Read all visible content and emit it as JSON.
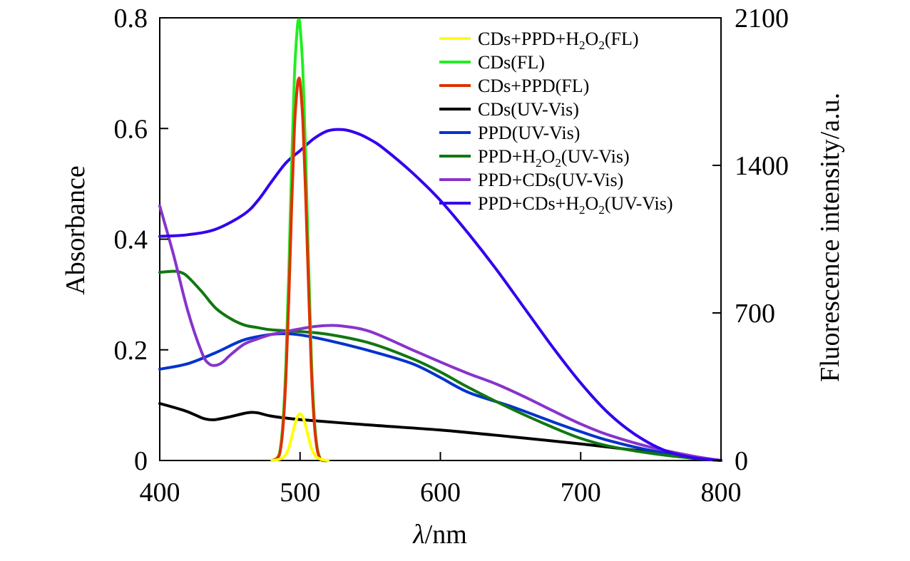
{
  "chart_data": {
    "type": "line",
    "xlabel_italic": "λ",
    "xlabel_rest": "/nm",
    "ylabel": "Absorbance",
    "y2label": "Fluorescence intensity/a.u.",
    "xlim": [
      400,
      800
    ],
    "ylim": [
      0,
      0.8
    ],
    "y2lim": [
      0,
      2100
    ],
    "xticks": [
      400,
      500,
      600,
      700,
      800
    ],
    "yticks": [
      0,
      0.2,
      0.4,
      0.6,
      0.8
    ],
    "ytick_labels": [
      "0",
      "0.2",
      "0.4",
      "0.6",
      "0.8"
    ],
    "y2ticks": [
      0,
      700,
      1400,
      2100
    ],
    "legend_position": "top-right",
    "series": [
      {
        "name": "CDs+PPD+H2O2(FL)",
        "legend": [
          {
            "t": "CDs+PPD+H"
          },
          {
            "t": "2",
            "sub": true
          },
          {
            "t": "O"
          },
          {
            "t": "2",
            "sub": true
          },
          {
            "t": "(FL)"
          }
        ],
        "color": "#ffff00",
        "axis": "right",
        "x": [
          480,
          485,
          488,
          490,
          492,
          494,
          496,
          498,
          500,
          502,
          504,
          506,
          508,
          510,
          512,
          515,
          520
        ],
        "y": [
          0,
          5,
          15,
          30,
          60,
          110,
          165,
          205,
          222,
          205,
          165,
          110,
          60,
          30,
          15,
          5,
          0
        ]
      },
      {
        "name": "CDs(FL)",
        "legend": [
          {
            "t": "CDs(FL)"
          }
        ],
        "color": "#22ee22",
        "axis": "right",
        "x": [
          480,
          484,
          486,
          488,
          490,
          492,
          494,
          496,
          498,
          499,
          500,
          502,
          504,
          506,
          508,
          510,
          512,
          514,
          516,
          520
        ],
        "y": [
          0,
          15,
          60,
          200,
          480,
          900,
          1400,
          1830,
          2050,
          2090,
          2060,
          1850,
          1450,
          950,
          500,
          220,
          70,
          15,
          0,
          0
        ]
      },
      {
        "name": "CDs+PPD(FL)",
        "legend": [
          {
            "t": "CDs+PPD(FL)"
          }
        ],
        "color": "#dd3300",
        "axis": "right",
        "x": [
          480,
          484,
          486,
          488,
          490,
          492,
          494,
          496,
          498,
          499,
          500,
          502,
          504,
          506,
          508,
          510,
          512,
          514,
          516,
          520
        ],
        "y": [
          0,
          12,
          50,
          170,
          410,
          770,
          1200,
          1580,
          1770,
          1810,
          1790,
          1610,
          1260,
          830,
          440,
          190,
          60,
          12,
          0,
          0
        ]
      },
      {
        "name": "CDs(UV-Vis)",
        "legend": [
          {
            "t": "CDs(UV-Vis)"
          }
        ],
        "color": "#000000",
        "axis": "left",
        "x": [
          400,
          410,
          420,
          430,
          435,
          440,
          450,
          460,
          465,
          470,
          480,
          500,
          550,
          600,
          650,
          700,
          740,
          770,
          800
        ],
        "y": [
          0.103,
          0.096,
          0.088,
          0.077,
          0.074,
          0.074,
          0.079,
          0.085,
          0.087,
          0.086,
          0.08,
          0.074,
          0.064,
          0.055,
          0.043,
          0.03,
          0.018,
          0.007,
          0.0
        ]
      },
      {
        "name": "PPD(UV-Vis)",
        "legend": [
          {
            "t": "PPD(UV-Vis)"
          }
        ],
        "color": "#0033cc",
        "axis": "left",
        "x": [
          400,
          420,
          440,
          460,
          480,
          490,
          500,
          520,
          550,
          580,
          600,
          620,
          650,
          680,
          700,
          720,
          750,
          780,
          800
        ],
        "y": [
          0.165,
          0.175,
          0.195,
          0.218,
          0.228,
          0.229,
          0.227,
          0.217,
          0.198,
          0.175,
          0.15,
          0.123,
          0.098,
          0.07,
          0.052,
          0.036,
          0.018,
          0.006,
          0.0
        ]
      },
      {
        "name": "PPD+H2O2(UV-Vis)",
        "legend": [
          {
            "t": "PPD+H"
          },
          {
            "t": "2",
            "sub": true
          },
          {
            "t": "O"
          },
          {
            "t": "2",
            "sub": true
          },
          {
            "t": "(UV-Vis)"
          }
        ],
        "color": "#117711",
        "axis": "left",
        "x": [
          400,
          410,
          415,
          420,
          430,
          440,
          450,
          460,
          470,
          480,
          500,
          520,
          550,
          580,
          600,
          620,
          650,
          680,
          700,
          720,
          750,
          780,
          800
        ],
        "y": [
          0.34,
          0.342,
          0.34,
          0.332,
          0.305,
          0.275,
          0.257,
          0.245,
          0.24,
          0.236,
          0.233,
          0.228,
          0.212,
          0.184,
          0.16,
          0.132,
          0.094,
          0.06,
          0.04,
          0.026,
          0.013,
          0.004,
          0.0
        ]
      },
      {
        "name": "PPD+CDs(UV-Vis)",
        "legend": [
          {
            "t": "PPD+CDs(UV-Vis)"
          }
        ],
        "color": "#8833cc",
        "axis": "left",
        "x": [
          400,
          410,
          420,
          430,
          435,
          440,
          445,
          450,
          460,
          470,
          480,
          490,
          500,
          510,
          520,
          530,
          550,
          580,
          600,
          620,
          640,
          660,
          680,
          700,
          720,
          750,
          780,
          800
        ],
        "y": [
          0.46,
          0.37,
          0.27,
          0.195,
          0.175,
          0.172,
          0.178,
          0.19,
          0.21,
          0.22,
          0.228,
          0.233,
          0.238,
          0.242,
          0.244,
          0.243,
          0.233,
          0.2,
          0.178,
          0.157,
          0.138,
          0.115,
          0.09,
          0.066,
          0.046,
          0.024,
          0.008,
          0.0
        ]
      },
      {
        "name": "PPD+CDs+H2O2(UV-Vis)",
        "legend": [
          {
            "t": "PPD+CDs+H"
          },
          {
            "t": "2",
            "sub": true
          },
          {
            "t": "O"
          },
          {
            "t": "2",
            "sub": true
          },
          {
            "t": "(UV-Vis)"
          }
        ],
        "color": "#3300ee",
        "axis": "left",
        "x": [
          400,
          420,
          440,
          460,
          470,
          480,
          490,
          500,
          510,
          520,
          530,
          540,
          550,
          560,
          580,
          600,
          620,
          640,
          660,
          680,
          700,
          720,
          740,
          760,
          780,
          800
        ],
        "y": [
          0.405,
          0.408,
          0.418,
          0.445,
          0.47,
          0.505,
          0.538,
          0.56,
          0.582,
          0.596,
          0.598,
          0.592,
          0.58,
          0.563,
          0.52,
          0.47,
          0.41,
          0.345,
          0.275,
          0.205,
          0.14,
          0.085,
          0.045,
          0.018,
          0.005,
          0.0
        ]
      }
    ]
  }
}
